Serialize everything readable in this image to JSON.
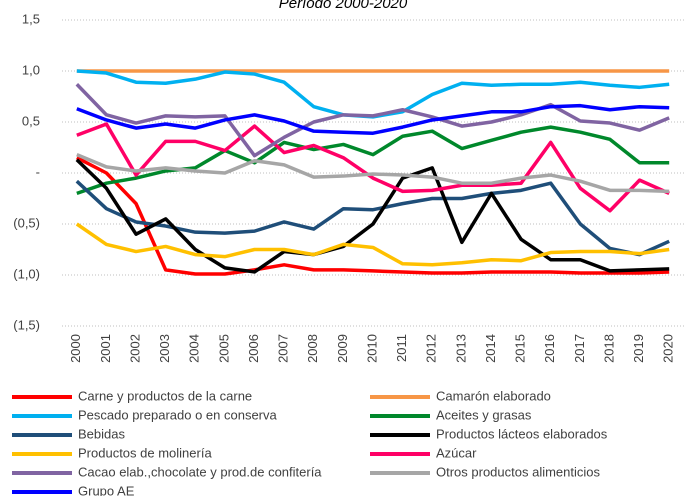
{
  "chart_data": {
    "type": "line",
    "title": "Período 2000-2020",
    "categories": [
      "2000",
      "2001",
      "2002",
      "2003",
      "2004",
      "2005",
      "2006",
      "2007",
      "2008",
      "2009",
      "2010",
      "2011",
      "2012",
      "2013",
      "2014",
      "2015",
      "2016",
      "2017",
      "2018",
      "2019",
      "2020"
    ],
    "ylim": [
      -1.5,
      1.5
    ],
    "yticks": [
      {
        "value": -1.5,
        "label": "(1,5)"
      },
      {
        "value": -1,
        "label": "(1,0)"
      },
      {
        "value": -0.5,
        "label": "(0,5)"
      },
      {
        "value": 0,
        "label": "-"
      },
      {
        "value": 0.5,
        "label": "0,5"
      },
      {
        "value": 1,
        "label": "1,0"
      },
      {
        "value": 1.5,
        "label": "1,5"
      }
    ],
    "grid": true,
    "series": [
      {
        "name": "Carne y productos de la carne",
        "color": "#ff0000",
        "values": [
          0.15,
          0.0,
          -0.3,
          -0.95,
          -0.99,
          -0.99,
          -0.95,
          -0.9,
          -0.95,
          -0.95,
          -0.96,
          -0.97,
          -0.98,
          -0.98,
          -0.97,
          -0.97,
          -0.97,
          -0.98,
          -0.98,
          -0.98,
          -0.97
        ]
      },
      {
        "name": "Camarón elaborado",
        "color": "#f79646",
        "values": [
          1,
          1,
          1,
          1,
          1,
          1,
          1,
          1,
          1,
          1,
          1,
          1,
          1,
          1,
          1,
          1,
          1,
          1,
          1,
          1,
          1
        ]
      },
      {
        "name": "Pescado preparado o en conserva",
        "color": "#00b0f0",
        "values": [
          1.0,
          0.98,
          0.89,
          0.88,
          0.92,
          0.99,
          0.97,
          0.89,
          0.65,
          0.57,
          0.55,
          0.6,
          0.77,
          0.88,
          0.86,
          0.87,
          0.87,
          0.89,
          0.86,
          0.84,
          0.87
        ]
      },
      {
        "name": "Aceites y grasas",
        "color": "#00882b",
        "values": [
          -0.2,
          -0.1,
          -0.05,
          0.02,
          0.05,
          0.22,
          0.1,
          0.3,
          0.23,
          0.28,
          0.18,
          0.36,
          0.41,
          0.24,
          0.32,
          0.4,
          0.45,
          0.4,
          0.33,
          0.1,
          0.1
        ]
      },
      {
        "name": "Bebidas",
        "color": "#1f4e79",
        "values": [
          -0.08,
          -0.35,
          -0.48,
          -0.52,
          -0.58,
          -0.59,
          -0.57,
          -0.48,
          -0.55,
          -0.35,
          -0.36,
          -0.3,
          -0.25,
          -0.25,
          -0.2,
          -0.17,
          -0.1,
          -0.5,
          -0.74,
          -0.8,
          -0.67
        ]
      },
      {
        "name": "Productos lácteos elaborados",
        "color": "#000000",
        "values": [
          0.13,
          -0.15,
          -0.6,
          -0.45,
          -0.75,
          -0.93,
          -0.97,
          -0.77,
          -0.8,
          -0.72,
          -0.5,
          -0.05,
          0.05,
          -0.68,
          -0.2,
          -0.65,
          -0.85,
          -0.85,
          -0.96,
          -0.95,
          -0.94
        ]
      },
      {
        "name": "Productos de molinería",
        "color": "#ffc000",
        "values": [
          -0.5,
          -0.7,
          -0.77,
          -0.72,
          -0.8,
          -0.82,
          -0.75,
          -0.75,
          -0.8,
          -0.7,
          -0.73,
          -0.89,
          -0.9,
          -0.88,
          -0.85,
          -0.86,
          -0.78,
          -0.77,
          -0.77,
          -0.79,
          -0.75
        ]
      },
      {
        "name": "Azúcar",
        "color": "#ff0066",
        "values": [
          0.37,
          0.48,
          -0.02,
          0.31,
          0.31,
          0.22,
          0.46,
          0.2,
          0.27,
          0.15,
          -0.05,
          -0.18,
          -0.17,
          -0.12,
          -0.12,
          -0.1,
          0.3,
          -0.15,
          -0.37,
          -0.07,
          -0.2
        ]
      },
      {
        "name": "Cacao elab.,chocolate y prod.de confitería",
        "color": "#8064a2",
        "values": [
          0.87,
          0.57,
          0.49,
          0.56,
          0.55,
          0.56,
          0.17,
          0.35,
          0.5,
          0.57,
          0.56,
          0.62,
          0.55,
          0.46,
          0.5,
          0.57,
          0.67,
          0.51,
          0.49,
          0.42,
          0.54
        ]
      },
      {
        "name": "Otros productos alimenticios",
        "color": "#a6a6a6",
        "values": [
          0.18,
          0.06,
          0.02,
          0.05,
          0.02,
          0.0,
          0.12,
          0.08,
          -0.04,
          -0.03,
          -0.01,
          -0.02,
          -0.04,
          -0.1,
          -0.1,
          -0.05,
          -0.02,
          -0.08,
          -0.17,
          -0.17,
          -0.18
        ]
      },
      {
        "name": "Grupo AE",
        "color": "#0000ff",
        "values": [
          0.63,
          0.52,
          0.44,
          0.48,
          0.44,
          0.52,
          0.57,
          0.51,
          0.41,
          0.4,
          0.39,
          0.45,
          0.52,
          0.56,
          0.6,
          0.6,
          0.65,
          0.66,
          0.62,
          0.65,
          0.64
        ]
      }
    ]
  }
}
